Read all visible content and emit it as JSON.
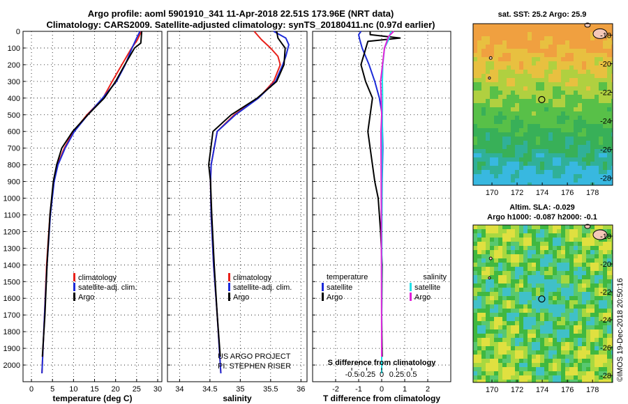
{
  "title": {
    "line1": "Argo profile: aoml 5901910_341 11-Apr-2018 22.51S 173.96E (NRT data)",
    "line2": "Climatology: CARS2009. Satellite-adjusted climatology: synTS_20180411.nc (0.97d earlier)"
  },
  "colors": {
    "climatology": "#e8201a",
    "satellite": "#1c2ad8",
    "argo": "#000000",
    "sat_salinity": "#22e0e8",
    "argo_salinity": "#e020d8"
  },
  "legend": {
    "climatology": "climatology",
    "satellite_adj": "satellite-adj. clim.",
    "argo": "Argo",
    "temperature": "temperature",
    "salinity": "salinity",
    "satellite": "satellite"
  },
  "credits": {
    "line1": "US ARGO PROJECT",
    "line2": "PI: STEPHEN RISER"
  },
  "side_label": "©IMOS 19-Dec-2018 20:50:16",
  "chart_data": [
    {
      "type": "line",
      "id": "temperature",
      "xlabel": "temperature (deg C)",
      "ylabel": "",
      "xlim": [
        -2,
        31
      ],
      "ylim": [
        2100,
        0
      ],
      "xticks": [
        0,
        5,
        10,
        15,
        20,
        25,
        30
      ],
      "yticks": [
        0,
        100,
        200,
        300,
        400,
        500,
        600,
        700,
        800,
        900,
        1000,
        1100,
        1200,
        1300,
        1400,
        1500,
        1600,
        1700,
        1800,
        1900,
        2000
      ],
      "series": [
        {
          "name": "climatology",
          "color": "#e8201a",
          "x": [
            26.1,
            25.2,
            23.8,
            21.5,
            19.2,
            17.0,
            13.2,
            10.0,
            7.8,
            6.2,
            5.3,
            4.4,
            3.6,
            3.1,
            2.5
          ],
          "y": [
            0,
            50,
            100,
            200,
            300,
            400,
            500,
            600,
            700,
            800,
            900,
            1100,
            1400,
            1700,
            2050
          ]
        },
        {
          "name": "satellite-adj. clim.",
          "color": "#1c2ad8",
          "x": [
            25.8,
            25.0,
            23.9,
            22.3,
            20.2,
            16.9,
            13.4,
            10.2,
            8.0,
            6.3,
            5.4,
            4.5,
            3.7,
            3.1,
            2.5
          ],
          "y": [
            0,
            40,
            100,
            200,
            300,
            400,
            500,
            600,
            700,
            800,
            900,
            1100,
            1400,
            1700,
            2050
          ]
        },
        {
          "name": "Argo",
          "color": "#000000",
          "x": [
            26.2,
            26.0,
            24.5,
            22.2,
            20.0,
            17.3,
            13.4,
            9.8,
            7.2,
            6.0,
            5.2,
            4.4,
            3.7,
            3.2,
            2.6
          ],
          "y": [
            0,
            70,
            100,
            200,
            300,
            400,
            500,
            600,
            700,
            800,
            900,
            1100,
            1400,
            1700,
            1950
          ]
        }
      ]
    },
    {
      "type": "line",
      "id": "salinity",
      "xlabel": "salinity",
      "ylabel": "",
      "xlim": [
        33.8,
        36.1
      ],
      "ylim": [
        2100,
        0
      ],
      "xticks": [
        34,
        34.5,
        35,
        35.5,
        36
      ],
      "series": [
        {
          "name": "climatology",
          "color": "#e8201a",
          "x": [
            35.23,
            35.35,
            35.5,
            35.62,
            35.66,
            35.55,
            35.3,
            34.9,
            34.62,
            34.52,
            34.51,
            34.52,
            34.56,
            34.62,
            34.68
          ],
          "y": [
            0,
            50,
            100,
            150,
            200,
            300,
            400,
            500,
            600,
            800,
            900,
            1100,
            1400,
            1700,
            2050
          ]
        },
        {
          "name": "satellite-adj. clim.",
          "color": "#1c2ad8",
          "x": [
            35.55,
            35.75,
            35.8,
            35.75,
            35.7,
            35.58,
            35.3,
            34.92,
            34.62,
            34.52,
            34.51,
            34.52,
            34.56,
            34.62,
            34.68
          ],
          "y": [
            0,
            40,
            80,
            150,
            200,
            300,
            400,
            500,
            600,
            800,
            900,
            1100,
            1400,
            1700,
            2050
          ]
        },
        {
          "name": "Argo",
          "color": "#000000",
          "x": [
            35.6,
            35.62,
            35.68,
            35.74,
            35.72,
            35.6,
            35.28,
            34.85,
            34.55,
            34.48,
            34.51,
            34.53,
            34.57,
            34.62,
            34.67
          ],
          "y": [
            0,
            40,
            70,
            100,
            200,
            300,
            400,
            500,
            600,
            800,
            900,
            1100,
            1400,
            1700,
            1950
          ]
        }
      ]
    },
    {
      "type": "line",
      "id": "differences",
      "xlabel": "T difference from climatology",
      "s_axis_label": "S difference from climatology",
      "xlim": [
        -3,
        3
      ],
      "ylim": [
        2100,
        0
      ],
      "xticks": [
        -2,
        -1,
        0,
        1,
        2
      ],
      "s_ticks": [
        -0.5,
        -0.25,
        0,
        0.25,
        0.5
      ],
      "series": [
        {
          "name": "temperature satellite",
          "color": "#1c2ad8",
          "x": [
            -0.9,
            -1.0,
            -0.95,
            -0.85,
            -0.55,
            -0.3,
            -0.1,
            0.02,
            0.05,
            0.02,
            0.0,
            0.0,
            0.0
          ],
          "y": [
            0,
            20,
            50,
            100,
            200,
            300,
            400,
            500,
            700,
            900,
            1200,
            1600,
            2050
          ]
        },
        {
          "name": "temperature Argo",
          "color": "#000000",
          "x": [
            -0.5,
            -0.5,
            0.8,
            -0.6,
            -0.9,
            -0.7,
            -0.4,
            -0.6,
            -0.5,
            -0.3,
            -0.15,
            -0.05,
            0.02,
            0.0,
            0.02
          ],
          "y": [
            0,
            20,
            40,
            60,
            200,
            300,
            400,
            600,
            700,
            900,
            1000,
            1200,
            1400,
            1700,
            1950
          ]
        },
        {
          "name": "salinity satellite",
          "color": "#22e0e8",
          "x": [
            0.4,
            0.3,
            0.12,
            0.05,
            0.03,
            0.04,
            0.03,
            0.02,
            0.01,
            0.0
          ],
          "y": [
            0,
            50,
            100,
            200,
            300,
            400,
            500,
            700,
            1000,
            2050
          ]
        },
        {
          "name": "salinity Argo",
          "color": "#e020d8",
          "x": [
            0.52,
            0.3,
            0.12,
            -0.05,
            0.0,
            -0.03,
            -0.02,
            0.0
          ],
          "y": [
            0,
            30,
            100,
            300,
            500,
            600,
            900,
            1950
          ]
        }
      ]
    },
    {
      "type": "heatmap",
      "id": "sst_map",
      "title": "sat. SST: 25.2 Argo: 25.9",
      "xticks": [
        170,
        172,
        174,
        176,
        178
      ],
      "yticks": [
        -18,
        -20,
        -22,
        -24,
        -26,
        -28
      ],
      "xlim": [
        168.5,
        179.6
      ],
      "ylim": [
        -28.5,
        -17.2
      ],
      "profile_location": [
        173.96,
        -22.51
      ]
    },
    {
      "type": "heatmap",
      "id": "sla_map",
      "title_line1": "Altim. SLA: -0.029",
      "title_line2": "Argo h1000: -0.087 h2000: -0.1",
      "xticks": [
        170,
        172,
        174,
        176,
        178
      ],
      "yticks": [
        -18,
        -20,
        -22,
        -24,
        -26,
        -28
      ],
      "xlim": [
        168.5,
        179.6
      ],
      "ylim": [
        -28.5,
        -17.2
      ],
      "profile_location": [
        173.96,
        -22.51
      ]
    }
  ]
}
